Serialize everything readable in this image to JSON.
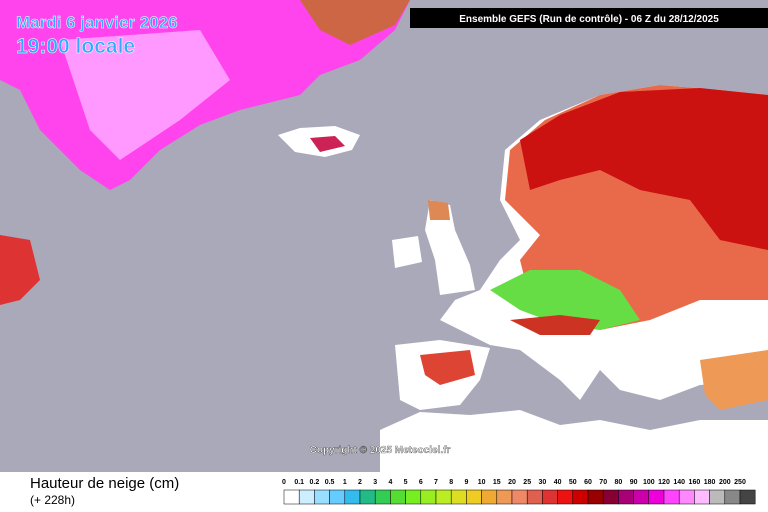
{
  "header": {
    "date": "Mardi 6 janvier 2026",
    "time": "19:00 locale",
    "run": "Ensemble GEFS  (Run de contrôle)  -  06 Z du 28/12/2025"
  },
  "map": {
    "copyright": "Copyright © 2025 Meteociel.fr"
  },
  "footer": {
    "title": "Hauteur de neige (cm)",
    "lead": "(+ 228h)"
  },
  "legend": {
    "items": [
      {
        "label": "0",
        "color": "#ffffff"
      },
      {
        "label": "0.1",
        "color": "#cceeff"
      },
      {
        "label": "0.2",
        "color": "#99ddff"
      },
      {
        "label": "0.5",
        "color": "#66ccff"
      },
      {
        "label": "1",
        "color": "#33bbee"
      },
      {
        "label": "2",
        "color": "#22bb88"
      },
      {
        "label": "3",
        "color": "#33cc55"
      },
      {
        "label": "4",
        "color": "#55dd33"
      },
      {
        "label": "5",
        "color": "#77ee22"
      },
      {
        "label": "6",
        "color": "#99ee22"
      },
      {
        "label": "7",
        "color": "#bbee22"
      },
      {
        "label": "8",
        "color": "#dddd22"
      },
      {
        "label": "9",
        "color": "#eecc22"
      },
      {
        "label": "10",
        "color": "#eeaa33"
      },
      {
        "label": "15",
        "color": "#ee9955"
      },
      {
        "label": "20",
        "color": "#ee8866"
      },
      {
        "label": "25",
        "color": "#e06050"
      },
      {
        "label": "30",
        "color": "#dd3333"
      },
      {
        "label": "40",
        "color": "#ee1111"
      },
      {
        "label": "50",
        "color": "#cc0000"
      },
      {
        "label": "60",
        "color": "#990000"
      },
      {
        "label": "70",
        "color": "#880033"
      },
      {
        "label": "80",
        "color": "#aa0077"
      },
      {
        "label": "90",
        "color": "#cc00aa"
      },
      {
        "label": "100",
        "color": "#ee00dd"
      },
      {
        "label": "120",
        "color": "#ff44ff"
      },
      {
        "label": "140",
        "color": "#ff88ff"
      },
      {
        "label": "160",
        "color": "#ffbbff"
      },
      {
        "label": "180",
        "color": "#bbbbbb"
      },
      {
        "label": "200",
        "color": "#888888"
      },
      {
        "label": "250",
        "color": "#444444"
      }
    ]
  }
}
